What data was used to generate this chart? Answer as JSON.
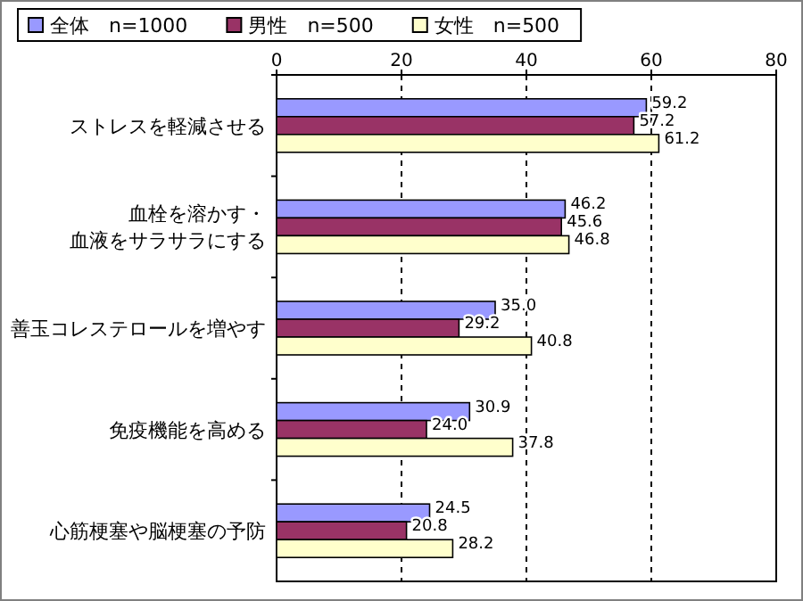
{
  "chart_data": {
    "type": "bar",
    "orientation": "horizontal",
    "categories": [
      "ストレスを軽減させる",
      "血栓を溶かす・血液をサラサラにする",
      "善玉コレステロールを増やす",
      "免疫機能を高める",
      "心筋梗塞や脳梗塞の予防"
    ],
    "series": [
      {
        "name": "全体　n=1000",
        "color": "#9999ff",
        "values": [
          59.2,
          46.2,
          35.0,
          30.9,
          24.5
        ],
        "value_labels": [
          "59.2",
          "46.2",
          "35.0",
          "30.9",
          "24.5"
        ]
      },
      {
        "name": "男性　n=500",
        "color": "#993366",
        "values": [
          57.2,
          45.6,
          29.2,
          24.0,
          20.8
        ],
        "value_labels": [
          "57.2",
          "45.6",
          "29.2",
          "24.0",
          "20.8"
        ]
      },
      {
        "name": "女性　n=500",
        "color": "#ffffcc",
        "values": [
          61.2,
          46.8,
          40.8,
          37.8,
          28.2
        ],
        "value_labels": [
          "61.2",
          "46.8",
          "40.8",
          "37.8",
          "28.2"
        ]
      }
    ],
    "xlim": [
      0,
      80
    ],
    "xticks": [
      0,
      20,
      40,
      60,
      80
    ],
    "grid": "x",
    "legend": "top"
  }
}
